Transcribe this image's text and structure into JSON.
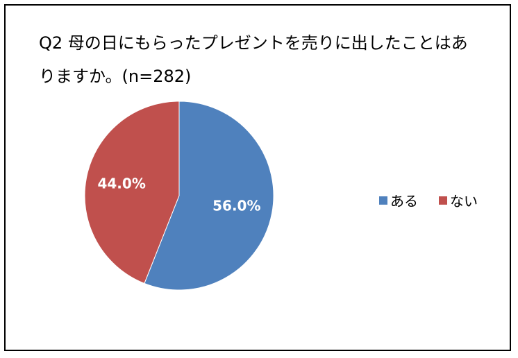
{
  "chart_data": {
    "type": "pie",
    "title": "Q2 母の日にもらったプレゼントを売りに出したことはありますか。(n=282)",
    "categories": [
      "ある",
      "ない"
    ],
    "values": [
      56.0,
      44.0
    ],
    "labels": [
      "56.0%",
      "44.0%"
    ],
    "colors": [
      "#4f81bd",
      "#c0504d"
    ],
    "legend_position": "right"
  }
}
